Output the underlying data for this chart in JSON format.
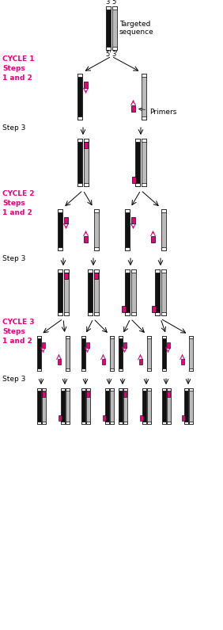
{
  "bg_color": "#ffffff",
  "black_color": "#111111",
  "gray_color": "#bbbbbb",
  "white_color": "#ffffff",
  "magenta_color": "#e8007a",
  "cycle_label_color": "#e8007a",
  "cycle1_label": "CYCLE 1\nSteps\n1 and 2",
  "cycle2_label": "CYCLE 2\nSteps\n1 and 2",
  "cycle3_label": "CYCLE 3\nSteps\n1 and 2",
  "step3_label": "Step 3",
  "targeted_label": "Targeted\nsequence",
  "primers_label": "Primers"
}
